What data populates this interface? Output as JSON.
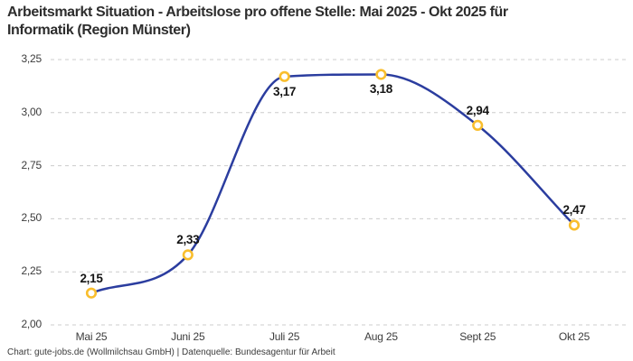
{
  "header": {
    "title_lines": [
      "Arbeitsmarkt Situation - Arbeitslose pro offene Stelle: Mai 2025 - Okt 2025 für",
      "Informatik (Region Münster)"
    ]
  },
  "footer": {
    "text": "Chart: gute-jobs.de (Wollmilchsau GmbH) | Datenquelle: Bundesagentur für Arbeit"
  },
  "chart_data": {
    "type": "line",
    "title": "Arbeitsmarkt Situation - Arbeitslose pro offene Stelle: Mai 2025 - Okt 2025 für Informatik (Region Münster)",
    "categories": [
      "Mai 25",
      "Juni 25",
      "Juli 25",
      "Aug 25",
      "Sept 25",
      "Okt 25"
    ],
    "values": [
      2.15,
      2.33,
      3.17,
      3.18,
      2.94,
      2.47
    ],
    "value_labels": [
      "2,15",
      "2,33",
      "3,17",
      "3,18",
      "2,94",
      "2,47"
    ],
    "label_positions": [
      "above",
      "above",
      "below",
      "below",
      "above",
      "above"
    ],
    "ylim": [
      2.0,
      3.25
    ],
    "yticks": [
      2.0,
      2.25,
      2.5,
      2.75,
      3.0,
      3.25
    ],
    "ytick_labels": [
      "2,00",
      "2,25",
      "2,50",
      "2,75",
      "3,00",
      "3,25"
    ],
    "xlabel": "",
    "ylabel": "",
    "grid": "horizontal-dashed",
    "legend": "none",
    "line_color": "#2B3D9F",
    "marker_fill": "#FFFFFF",
    "marker_color": "#F9BE2D",
    "grid_color": "#CCCCCC"
  }
}
